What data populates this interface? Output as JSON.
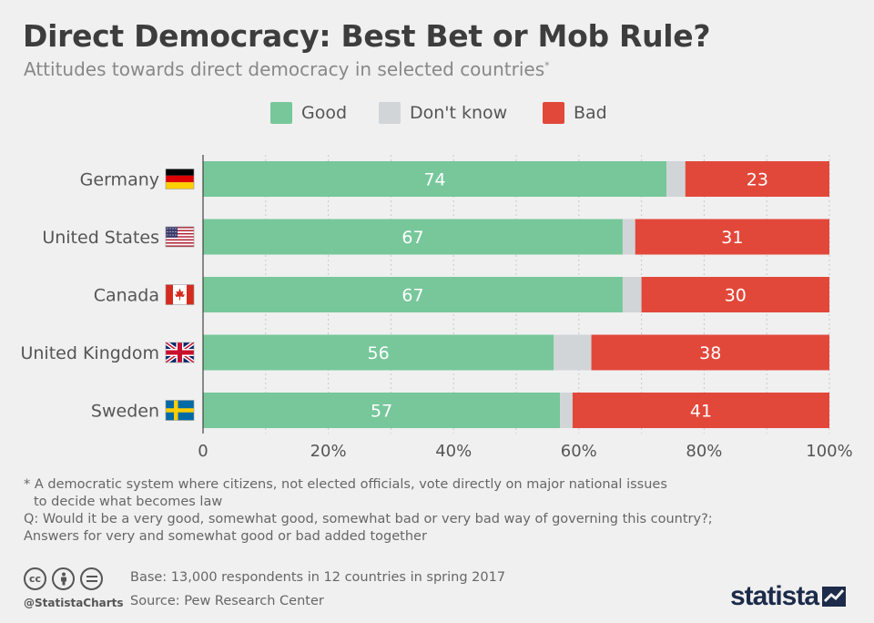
{
  "header": {
    "title": "Direct Democracy: Best Bet or Mob Rule?",
    "subtitle": "Attitudes towards direct democracy in selected countries",
    "subtitle_mark": "*"
  },
  "legend": [
    {
      "label": "Good",
      "color": "#77c79b"
    },
    {
      "label": "Don't know",
      "color": "#d1d5d8"
    },
    {
      "label": "Bad",
      "color": "#e2483a"
    }
  ],
  "chart_data": {
    "type": "bar",
    "orientation": "horizontal",
    "stacked": true,
    "categories": [
      "Germany",
      "United States",
      "Canada",
      "United Kingdom",
      "Sweden"
    ],
    "series": [
      {
        "name": "Good",
        "color": "#77c79b",
        "values": [
          74,
          67,
          67,
          56,
          57
        ],
        "labeled": true
      },
      {
        "name": "Don't know",
        "color": "#d1d5d8",
        "values": [
          3,
          2,
          3,
          6,
          2
        ],
        "labeled": false
      },
      {
        "name": "Bad",
        "color": "#e2483a",
        "values": [
          23,
          31,
          30,
          38,
          41
        ],
        "labeled": true
      }
    ],
    "xlim": [
      0,
      100
    ],
    "xticks": [
      "0",
      "20%",
      "40%",
      "60%",
      "80%",
      "100%"
    ],
    "grid": "vertical dotted",
    "flags": [
      "germany-flag-icon",
      "usa-flag-icon",
      "canada-flag-icon",
      "uk-flag-icon",
      "sweden-flag-icon"
    ]
  },
  "footnotes": {
    "line1": "* A democratic system where citizens, not elected officials, vote directly on major national issues",
    "line2": "to decide what becomes law",
    "line3": "Q: Would it be a very good, somewhat good, somewhat bad or very bad way of governing this country?;",
    "line4": "Answers for very and somewhat good or bad added together"
  },
  "footer": {
    "handle": "@StatistaCharts",
    "base": "Base: 13,000 respondents in 12 countries in spring 2017",
    "source": "Source: Pew Research Center",
    "logo": "statista",
    "license_icons": [
      "cc-icon",
      "attribution-icon",
      "no-derivatives-icon"
    ]
  }
}
